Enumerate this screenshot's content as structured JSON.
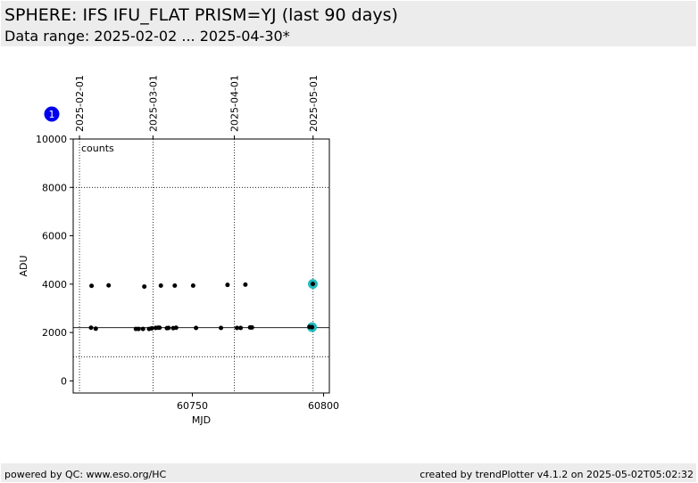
{
  "header": {
    "title": "SPHERE: IFS IFU_FLAT PRISM=YJ (last 90 days)",
    "subtitle": "Data range: 2025-02-02 ... 2025-04-30*"
  },
  "footer": {
    "left": "powered by QC: www.eso.org/HC",
    "right": "created by trendPlotter v4.1.2 on 2025-05-02T05:02:32"
  },
  "chart_data": {
    "type": "scatter",
    "panel_badge": "1",
    "annotation": "counts",
    "xlabel": "MJD",
    "ylabel": "ADU",
    "xlim": [
      60704.6,
      60802.2
    ],
    "ylim": [
      -500,
      10000
    ],
    "x_ticks": [
      60750,
      60800
    ],
    "x_tick_labels": [
      "60750",
      "60800"
    ],
    "y_ticks": [
      0,
      2000,
      4000,
      6000,
      8000,
      10000
    ],
    "y_tick_labels": [
      "0",
      "2000",
      "4000",
      "6000",
      "8000",
      "10000"
    ],
    "date_ticks": [
      {
        "mjd": 60707.0,
        "label": "2025-02-01"
      },
      {
        "mjd": 60735.0,
        "label": "2025-03-01"
      },
      {
        "mjd": 60766.0,
        "label": "2025-04-01"
      },
      {
        "mjd": 60796.0,
        "label": "2025-05-01"
      }
    ],
    "reference_lines": [
      {
        "y": 2200,
        "style": "solid"
      },
      {
        "y": 1000,
        "style": "dotted"
      },
      {
        "y": 8000,
        "style": "dotted"
      }
    ],
    "grid": "dotted vertical at month starts",
    "marker_color": "#000000",
    "highlight_color": "#22bbbb",
    "series": [
      {
        "points": [
          [
            60711.4,
            2200
          ],
          [
            60711.6,
            3930
          ],
          [
            60713.2,
            2160
          ],
          [
            60718.1,
            3950
          ],
          [
            60728.5,
            2150
          ],
          [
            60729.5,
            2150
          ],
          [
            60731.2,
            2150
          ],
          [
            60731.7,
            3900
          ],
          [
            60733.5,
            2150
          ],
          [
            60734.5,
            2170
          ],
          [
            60736.0,
            2190
          ],
          [
            60736.9,
            2200
          ],
          [
            60737.5,
            2200
          ],
          [
            60738.0,
            3940
          ],
          [
            60740.3,
            2180
          ],
          [
            60740.9,
            2190
          ],
          [
            60742.7,
            2180
          ],
          [
            60743.3,
            3940
          ],
          [
            60743.8,
            2200
          ],
          [
            60750.3,
            3940
          ],
          [
            60751.4,
            2190
          ],
          [
            60760.9,
            2190
          ],
          [
            60763.4,
            3970
          ],
          [
            60767.0,
            2190
          ],
          [
            60768.4,
            2190
          ],
          [
            60770.2,
            3980
          ],
          [
            60772.0,
            2210
          ],
          [
            60772.7,
            2210
          ],
          [
            60794.6,
            2230
          ],
          [
            60795.6,
            2220
          ],
          [
            60795.9,
            4010
          ]
        ],
        "highlighted": [
          [
            60795.6,
            2220
          ],
          [
            60795.9,
            4010
          ]
        ]
      }
    ]
  }
}
